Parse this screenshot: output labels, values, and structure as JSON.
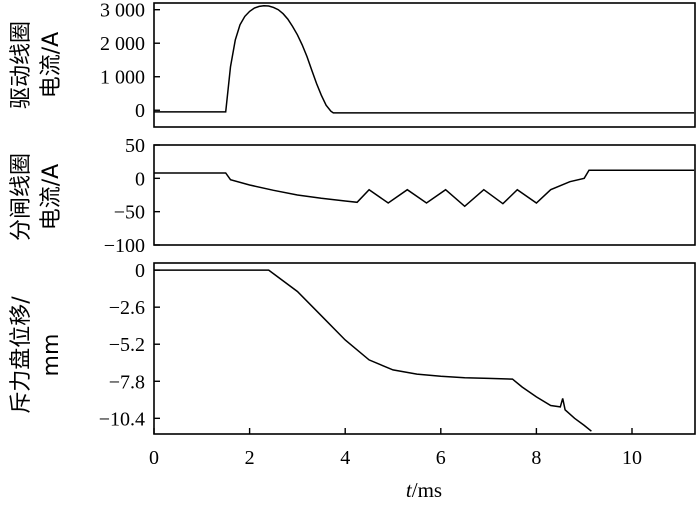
{
  "chart_data": [
    {
      "type": "line",
      "ylabel_lines": [
        "驱动线圈",
        "电流/A"
      ],
      "ylim": [
        -500,
        3200
      ],
      "yticks": [
        3000,
        2000,
        1000,
        0
      ],
      "ytick_labels": [
        "3 000",
        "2 000",
        "1 000",
        "0"
      ],
      "x_range": [
        0,
        11.3
      ],
      "series": [
        {
          "x": [
            0,
            1.0,
            1.5,
            1.6,
            1.7,
            1.8,
            1.9,
            2.0,
            2.1,
            2.2,
            2.3,
            2.4,
            2.5,
            2.6,
            2.7,
            2.8,
            2.9,
            3.0,
            3.1,
            3.2,
            3.3,
            3.4,
            3.5,
            3.6,
            3.7,
            3.75,
            4.0,
            6.0,
            8.0,
            10.0,
            11.3
          ],
          "y": [
            -50,
            -50,
            -50,
            1300,
            2100,
            2550,
            2800,
            2950,
            3050,
            3100,
            3120,
            3110,
            3070,
            3000,
            2880,
            2720,
            2500,
            2250,
            1950,
            1600,
            1200,
            800,
            450,
            150,
            -30,
            -80,
            -80,
            -80,
            -80,
            -80,
            -80
          ]
        }
      ]
    },
    {
      "type": "line",
      "ylabel_lines": [
        "分闸线圈",
        "电流/A"
      ],
      "ylim": [
        -100,
        50
      ],
      "yticks": [
        50,
        0,
        -50,
        -100
      ],
      "ytick_labels": [
        "50",
        "0",
        "−50",
        "−100"
      ],
      "x_range": [
        0,
        11.3
      ],
      "series": [
        {
          "x": [
            0,
            1.0,
            1.5,
            1.6,
            2.0,
            2.5,
            3.0,
            3.5,
            4.0,
            4.25,
            4.5,
            4.9,
            5.3,
            5.7,
            6.1,
            6.5,
            6.9,
            7.3,
            7.6,
            8.0,
            8.3,
            8.7,
            9.0,
            9.1,
            10.0,
            11.3
          ],
          "y": [
            8,
            8,
            8,
            -2,
            -10,
            -18,
            -25,
            -30,
            -34,
            -36,
            -17,
            -37,
            -17,
            -37,
            -17,
            -42,
            -17,
            -38,
            -17,
            -37,
            -17,
            -5,
            0,
            12,
            12,
            12
          ]
        }
      ]
    },
    {
      "type": "line",
      "ylabel_lines": [
        "斥力盘位移/",
        "mm"
      ],
      "xlabel": "t/ms",
      "ylim": [
        -11.5,
        0.5
      ],
      "yticks": [
        0,
        -2.6,
        -5.2,
        -7.8,
        -10.4
      ],
      "ytick_labels": [
        "0",
        "−2.6",
        "−5.2",
        "−7.8",
        "−10.4"
      ],
      "x_range": [
        0,
        11.3
      ],
      "xticks": [
        0,
        2,
        4,
        6,
        8,
        10
      ],
      "xtick_labels": [
        "0",
        "2",
        "4",
        "6",
        "8",
        "10"
      ],
      "series": [
        {
          "x": [
            0,
            1.0,
            2.0,
            2.4,
            3.0,
            3.5,
            4.0,
            4.5,
            5.0,
            5.5,
            6.0,
            6.5,
            7.0,
            7.5,
            7.7,
            8.0,
            8.3,
            8.5,
            8.55,
            8.6,
            8.8,
            9.0,
            9.15
          ],
          "y": [
            0,
            0,
            0,
            0,
            -1.5,
            -3.2,
            -4.9,
            -6.3,
            -7.0,
            -7.3,
            -7.45,
            -7.55,
            -7.6,
            -7.65,
            -8.2,
            -8.9,
            -9.5,
            -9.6,
            -9.0,
            -9.8,
            -10.4,
            -10.9,
            -11.3
          ]
        }
      ]
    }
  ]
}
